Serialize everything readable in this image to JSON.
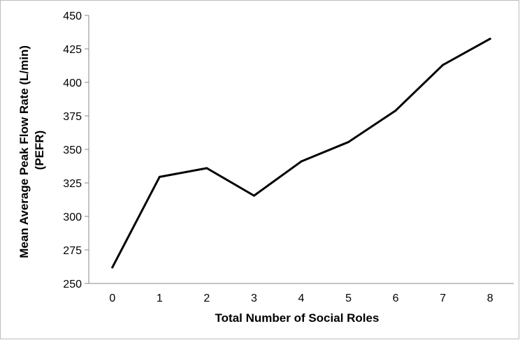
{
  "chart_data": {
    "type": "line",
    "title": "",
    "xlabel": "Total Number of Social Roles",
    "ylabel": [
      "Mean Average Peak Flow Rate (L/min)",
      "(PEFR)"
    ],
    "categories": [
      "0",
      "1",
      "2",
      "3",
      "4",
      "5",
      "6",
      "7",
      "8"
    ],
    "series": [
      {
        "values": [
          262,
          329.5,
          336,
          315.5,
          341,
          355.5,
          379,
          413,
          432.5
        ]
      }
    ],
    "ylim": [
      250,
      450
    ],
    "yticks": [
      250,
      275,
      300,
      325,
      350,
      375,
      400,
      425,
      450
    ],
    "grid": false,
    "legend": "none",
    "line_color": "#000000"
  }
}
